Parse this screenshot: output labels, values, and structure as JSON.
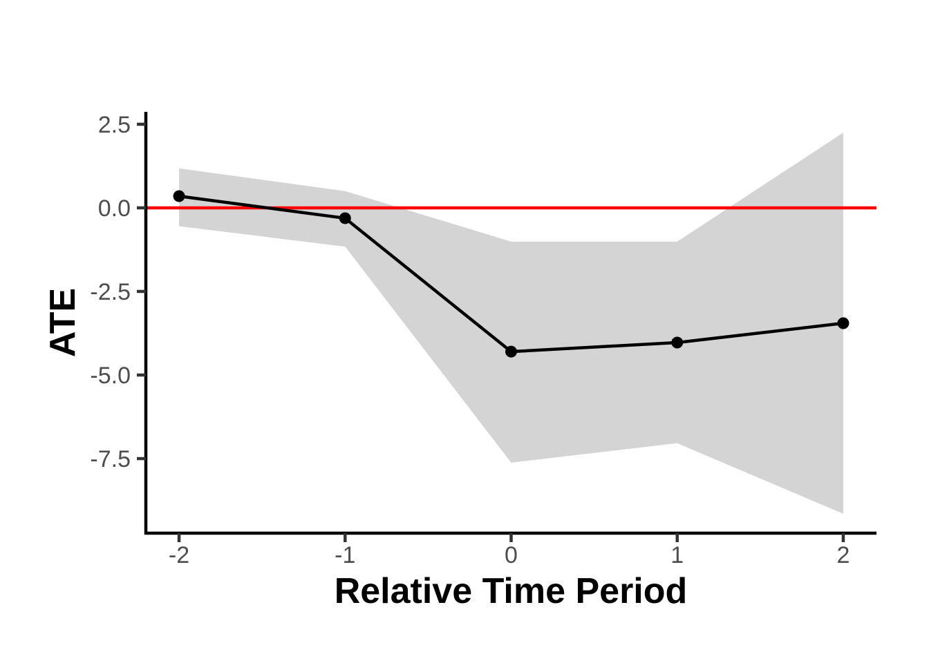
{
  "chart_data": {
    "type": "line",
    "title": "",
    "xlabel": "Relative Time Period",
    "ylabel": "ATE",
    "x": [
      -2,
      -1,
      0,
      1,
      2
    ],
    "series": [
      {
        "name": "ATE",
        "values": [
          0.35,
          -0.31,
          -4.3,
          -4.03,
          -3.45
        ]
      }
    ],
    "ci_upper": [
      1.18,
      0.5,
      -1.01,
      -1.01,
      2.25
    ],
    "ci_lower": [
      -0.55,
      -1.16,
      -7.62,
      -7.04,
      -9.15
    ],
    "reference_line_y": 0,
    "x_ticks": [
      {
        "value": -2,
        "label": "-2"
      },
      {
        "value": -1,
        "label": "-1"
      },
      {
        "value": 0,
        "label": "0"
      },
      {
        "value": 1,
        "label": "1"
      },
      {
        "value": 2,
        "label": "2"
      }
    ],
    "y_ticks": [
      {
        "value": 2.5,
        "label": "2.5"
      },
      {
        "value": 0.0,
        "label": "0.0"
      },
      {
        "value": -2.5,
        "label": "-2.5"
      },
      {
        "value": -5.0,
        "label": "-5.0"
      },
      {
        "value": -7.5,
        "label": "-7.5"
      }
    ],
    "xlim": [
      -2.2,
      2.2
    ],
    "ylim": [
      -9.73,
      2.87
    ],
    "grid": false,
    "legend": "none",
    "colors": {
      "line": "#000000",
      "point": "#000000",
      "band": "#d4d4d4",
      "reference": "#ff0000",
      "axis_line": "#000000",
      "tick_mark": "#333333",
      "tick_label": "#4d4d4d",
      "background": "#ffffff"
    }
  }
}
